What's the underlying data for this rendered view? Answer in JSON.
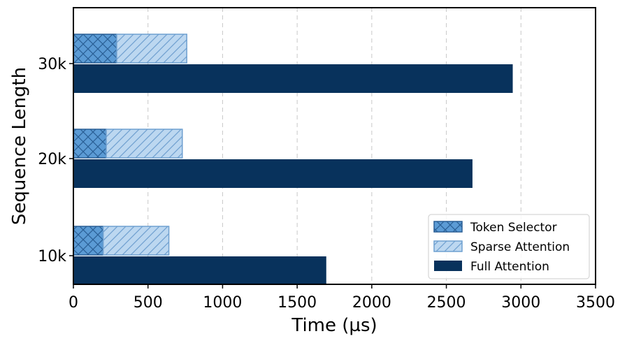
{
  "chart_data": {
    "type": "bar",
    "orientation": "horizontal",
    "stacked_segments": true,
    "categories": [
      "10k",
      "20k",
      "30k"
    ],
    "series": [
      {
        "name": "Token Selector",
        "values": [
          200,
          220,
          290
        ],
        "color": "#5b9bd5",
        "hatch": "cross"
      },
      {
        "name": "Sparse Attention",
        "values": [
          440,
          510,
          470
        ],
        "color": "#bcd7f0",
        "hatch": "diagonal"
      },
      {
        "name": "Full Attention",
        "values": [
          1695,
          2675,
          2945
        ],
        "color": "#08325c",
        "hatch": "none"
      }
    ],
    "xlabel": "Time (µs)",
    "ylabel": "Sequence Length",
    "xlim": [
      0,
      3500
    ],
    "xticks": [
      "0",
      "500",
      "1000",
      "1500",
      "2000",
      "2500",
      "3000",
      "3500"
    ],
    "grid": "x-dashed",
    "legend_position": "bottom-right"
  }
}
